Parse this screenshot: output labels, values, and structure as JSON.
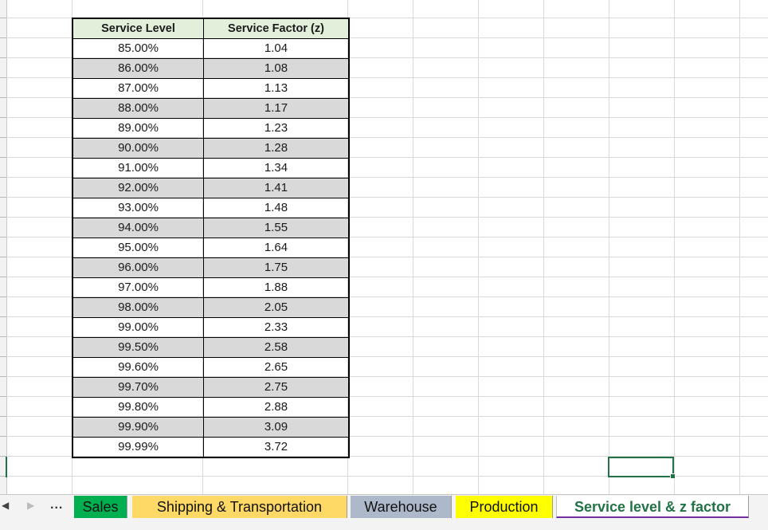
{
  "table": {
    "headers": [
      "Service Level",
      "Service Factor (z)"
    ],
    "rows": [
      [
        "85.00%",
        "1.04"
      ],
      [
        "86.00%",
        "1.08"
      ],
      [
        "87.00%",
        "1.13"
      ],
      [
        "88.00%",
        "1.17"
      ],
      [
        "89.00%",
        "1.23"
      ],
      [
        "90.00%",
        "1.28"
      ],
      [
        "91.00%",
        "1.34"
      ],
      [
        "92.00%",
        "1.41"
      ],
      [
        "93.00%",
        "1.48"
      ],
      [
        "94.00%",
        "1.55"
      ],
      [
        "95.00%",
        "1.64"
      ],
      [
        "96.00%",
        "1.75"
      ],
      [
        "97.00%",
        "1.88"
      ],
      [
        "98.00%",
        "2.05"
      ],
      [
        "99.00%",
        "2.33"
      ],
      [
        "99.50%",
        "2.58"
      ],
      [
        "99.60%",
        "2.65"
      ],
      [
        "99.70%",
        "2.75"
      ],
      [
        "99.80%",
        "2.88"
      ],
      [
        "99.90%",
        "3.09"
      ],
      [
        "99.99%",
        "3.72"
      ]
    ]
  },
  "sheet_tabs": {
    "nav_prev_icon": "triangle-left-icon",
    "nav_next_icon": "triangle-right-icon",
    "more": "...",
    "tabs": [
      {
        "label": "Sales",
        "color": "#00b050"
      },
      {
        "label": "Shipping & Transportation",
        "color": "#ffd966"
      },
      {
        "label": "Warehouse",
        "color": "#adb9ca"
      },
      {
        "label": "Production",
        "color": "#ffff00"
      },
      {
        "label": "Service level & z factor",
        "color": "#ffffff",
        "active": true
      }
    ]
  },
  "colors": {
    "header_fill": "#e2efda",
    "alt_row_fill": "#d9d9d9",
    "selection": "#217346"
  }
}
